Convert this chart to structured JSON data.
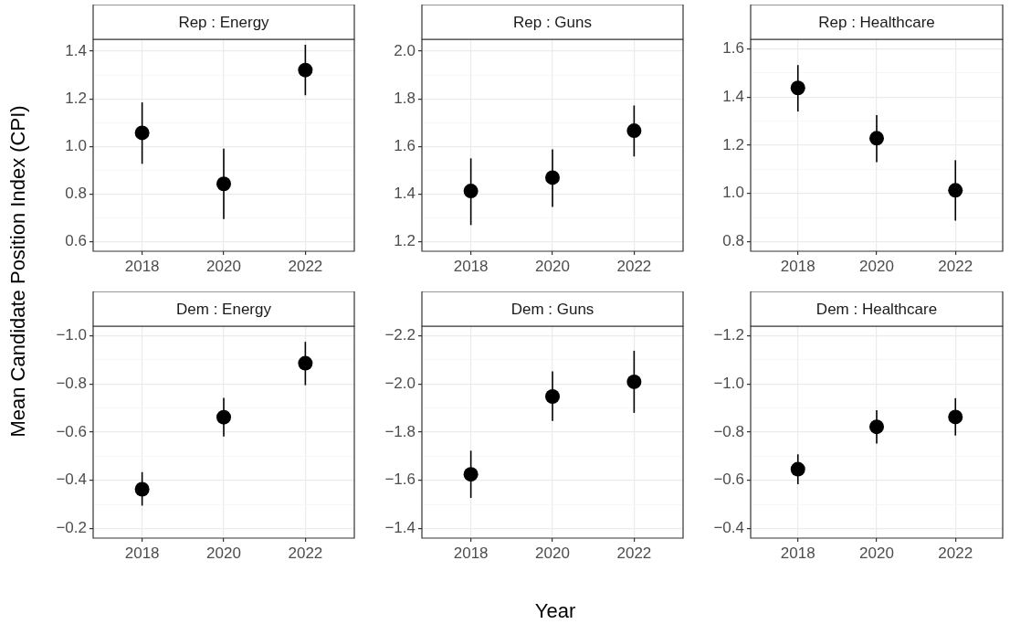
{
  "chart_data": [
    {
      "type": "scatter",
      "title": "Rep : Energy",
      "ylabel": "Mean Candidate Position Index (CPI)",
      "categories": [
        "2018",
        "2020",
        "2022"
      ],
      "color": "#000000",
      "marker": "circle",
      "grid": true,
      "values": [
        1.057,
        0.843,
        1.321
      ],
      "errors": [
        [
          0.927,
          1.185
        ],
        [
          0.695,
          0.991
        ],
        [
          1.215,
          1.427
        ]
      ],
      "ylim": [
        0.56,
        1.45
      ],
      "yticks": [
        0.6,
        {
          "value": 0.7,
          "label": null
        },
        0.8,
        {
          "value": 0.9,
          "label": null
        },
        {
          "value": 1.0,
          "label": "1.0"
        },
        {
          "value": 1.1,
          "label": null
        },
        1.2,
        {
          "value": 1.3,
          "label": null
        },
        1.4
      ]
    },
    {
      "type": "scatter",
      "title": "Rep : Guns",
      "categories": [
        "2018",
        "2020",
        "2022"
      ],
      "color": "#000000",
      "marker": "circle",
      "grid": true,
      "values": [
        1.413,
        1.469,
        1.666
      ],
      "errors": [
        [
          1.27,
          1.55
        ],
        [
          1.346,
          1.588
        ],
        [
          1.558,
          1.772
        ]
      ],
      "ylim": [
        1.16,
        2.05
      ],
      "yticks": [
        1.2,
        {
          "value": 1.3,
          "label": null
        },
        1.4,
        {
          "value": 1.5,
          "label": null
        },
        1.6,
        {
          "value": 1.7,
          "label": null
        },
        1.8,
        {
          "value": 1.9,
          "label": null
        },
        {
          "value": 2.0,
          "label": "2.0"
        }
      ]
    },
    {
      "type": "scatter",
      "title": "Rep : Healthcare",
      "categories": [
        "2018",
        "2020",
        "2022"
      ],
      "color": "#000000",
      "marker": "circle",
      "grid": true,
      "values": [
        1.438,
        1.229,
        1.013
      ],
      "errors": [
        [
          1.34,
          1.533
        ],
        [
          1.13,
          1.325
        ],
        [
          0.887,
          1.138
        ]
      ],
      "ylim": [
        0.76,
        1.64
      ],
      "yticks": [
        0.8,
        {
          "value": 0.9,
          "label": null
        },
        {
          "value": 1.0,
          "label": "1.0"
        },
        {
          "value": 1.1,
          "label": null
        },
        1.2,
        {
          "value": 1.3,
          "label": null
        },
        1.4,
        {
          "value": 1.5,
          "label": null
        },
        1.6
      ]
    },
    {
      "type": "scatter",
      "title": "Dem : Energy",
      "categories": [
        "2018",
        "2020",
        "2022"
      ],
      "color": "#000000",
      "marker": "circle",
      "grid": true,
      "values": [
        -0.363,
        -0.662,
        -0.886
      ],
      "errors": [
        [
          -0.434,
          -0.295
        ],
        [
          -0.742,
          -0.582
        ],
        [
          -0.975,
          -0.795
        ]
      ],
      "ylim": [
        -0.16,
        -1.04
      ],
      "yticks": [
        {
          "value": -1.0,
          "label": "−1.0"
        },
        {
          "value": -0.9,
          "label": null
        },
        {
          "value": -0.8,
          "label": "−0.8"
        },
        {
          "value": -0.7,
          "label": null
        },
        {
          "value": -0.6,
          "label": "−0.6"
        },
        {
          "value": -0.5,
          "label": null
        },
        {
          "value": -0.4,
          "label": "−0.4"
        },
        {
          "value": -0.3,
          "label": null
        },
        {
          "value": -0.2,
          "label": "−0.2"
        }
      ]
    },
    {
      "type": "scatter",
      "title": "Dem : Guns",
      "xlabel": "Year",
      "categories": [
        "2018",
        "2020",
        "2022"
      ],
      "color": "#000000",
      "marker": "circle",
      "grid": true,
      "values": [
        -1.625,
        -1.948,
        -2.009
      ],
      "errors": [
        [
          -1.723,
          -1.527
        ],
        [
          -2.052,
          -1.846
        ],
        [
          -2.138,
          -1.88
        ]
      ],
      "ylim": [
        -1.36,
        -2.24
      ],
      "yticks": [
        {
          "value": -2.2,
          "label": "−2.2"
        },
        {
          "value": -2.1,
          "label": null
        },
        {
          "value": -2.0,
          "label": "−2.0"
        },
        {
          "value": -1.9,
          "label": null
        },
        {
          "value": -1.8,
          "label": "−1.8"
        },
        {
          "value": -1.7,
          "label": null
        },
        {
          "value": -1.6,
          "label": "−1.6"
        },
        {
          "value": -1.5,
          "label": null
        },
        {
          "value": -1.4,
          "label": "−1.4"
        }
      ]
    },
    {
      "type": "scatter",
      "title": "Dem : Healthcare",
      "categories": [
        "2018",
        "2020",
        "2022"
      ],
      "color": "#000000",
      "marker": "circle",
      "grid": true,
      "values": [
        -0.646,
        -0.822,
        -0.863
      ],
      "errors": [
        [
          -0.708,
          -0.584
        ],
        [
          -0.891,
          -0.753
        ],
        [
          -0.941,
          -0.786
        ]
      ],
      "ylim": [
        -0.36,
        -1.24
      ],
      "yticks": [
        {
          "value": -1.2,
          "label": "−1.2"
        },
        {
          "value": -1.1,
          "label": null
        },
        {
          "value": -1.0,
          "label": "−1.0"
        },
        {
          "value": -0.9,
          "label": null
        },
        {
          "value": -0.8,
          "label": "−0.8"
        },
        {
          "value": -0.7,
          "label": null
        },
        {
          "value": -0.6,
          "label": "−0.6"
        },
        {
          "value": -0.5,
          "label": null
        },
        {
          "value": -0.4,
          "label": "−0.4"
        }
      ]
    }
  ]
}
